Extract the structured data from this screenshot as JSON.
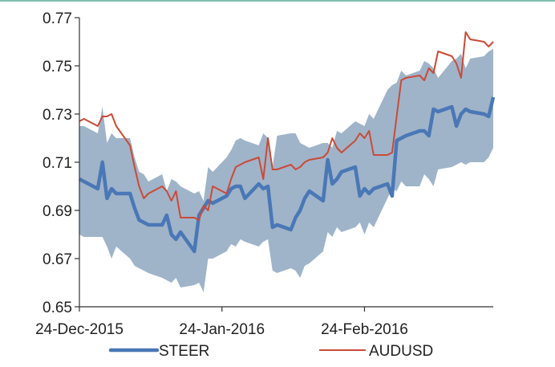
{
  "chart_data": {
    "type": "line",
    "title": "",
    "xlabel": "",
    "ylabel": "",
    "ylim": [
      0.65,
      0.77
    ],
    "yticks": [
      "0.77",
      "0.75",
      "0.73",
      "0.71",
      "0.69",
      "0.67",
      "0.65"
    ],
    "ytick_values": [
      0.77,
      0.75,
      0.73,
      0.71,
      0.69,
      0.67,
      0.65
    ],
    "xticks": [
      "24-Dec-2015",
      "24-Jan-2016",
      "24-Feb-2016"
    ],
    "xtick_dates": [
      "2015-12-24",
      "2016-01-24",
      "2016-02-24"
    ],
    "x_range": [
      "2015-12-24",
      "2016-03-23"
    ],
    "grid": false,
    "legend_position": "bottom",
    "band": {
      "name": "",
      "color": "#9fb4c9",
      "x": [
        "2015-12-24",
        "2015-12-25",
        "2015-12-28",
        "2015-12-29",
        "2015-12-30",
        "2015-12-31",
        "2016-01-01",
        "2016-01-04",
        "2016-01-05",
        "2016-01-06",
        "2016-01-07",
        "2016-01-08",
        "2016-01-11",
        "2016-01-12",
        "2016-01-13",
        "2016-01-14",
        "2016-01-15",
        "2016-01-18",
        "2016-01-19",
        "2016-01-20",
        "2016-01-21",
        "2016-01-22",
        "2016-01-25",
        "2016-01-26",
        "2016-01-27",
        "2016-01-28",
        "2016-01-29",
        "2016-02-01",
        "2016-02-02",
        "2016-02-03",
        "2016-02-04",
        "2016-02-05",
        "2016-02-08",
        "2016-02-09",
        "2016-02-10",
        "2016-02-11",
        "2016-02-12",
        "2016-02-15",
        "2016-02-16",
        "2016-02-17",
        "2016-02-18",
        "2016-02-19",
        "2016-02-22",
        "2016-02-23",
        "2016-02-24",
        "2016-02-25",
        "2016-02-26",
        "2016-02-29",
        "2016-03-01",
        "2016-03-02",
        "2016-03-03",
        "2016-03-04",
        "2016-03-07",
        "2016-03-08",
        "2016-03-09",
        "2016-03-10",
        "2016-03-11",
        "2016-03-14",
        "2016-03-15",
        "2016-03-16",
        "2016-03-17",
        "2016-03-18",
        "2016-03-21",
        "2016-03-22",
        "2016-03-23"
      ],
      "upper": [
        0.725,
        0.725,
        0.722,
        0.733,
        0.718,
        0.722,
        0.72,
        0.72,
        0.712,
        0.706,
        0.705,
        0.702,
        0.705,
        0.698,
        0.703,
        0.702,
        0.7,
        0.697,
        0.698,
        0.694,
        0.708,
        0.706,
        0.712,
        0.715,
        0.719,
        0.72,
        0.719,
        0.717,
        0.722,
        0.72,
        0.708,
        0.721,
        0.722,
        0.722,
        0.718,
        0.717,
        0.716,
        0.718,
        0.718,
        0.716,
        0.723,
        0.722,
        0.727,
        0.726,
        0.725,
        0.73,
        0.728,
        0.74,
        0.742,
        0.743,
        0.748,
        0.746,
        0.748,
        0.752,
        0.751,
        0.749,
        0.745,
        0.752,
        0.753,
        0.755,
        0.749,
        0.753,
        0.754,
        0.756,
        0.757
      ],
      "lower": [
        0.68,
        0.679,
        0.679,
        0.679,
        0.675,
        0.67,
        0.675,
        0.67,
        0.667,
        0.666,
        0.665,
        0.664,
        0.662,
        0.661,
        0.66,
        0.662,
        0.658,
        0.659,
        0.66,
        0.656,
        0.67,
        0.67,
        0.673,
        0.676,
        0.675,
        0.678,
        0.677,
        0.675,
        0.677,
        0.678,
        0.665,
        0.664,
        0.666,
        0.665,
        0.662,
        0.667,
        0.668,
        0.673,
        0.681,
        0.679,
        0.683,
        0.681,
        0.683,
        0.685,
        0.68,
        0.685,
        0.683,
        0.695,
        0.699,
        0.698,
        0.702,
        0.7,
        0.7,
        0.705,
        0.703,
        0.7,
        0.707,
        0.708,
        0.709,
        0.71,
        0.709,
        0.71,
        0.71,
        0.712,
        0.716
      ]
    },
    "series": [
      {
        "name": "STEER",
        "color": "#4a77b6",
        "x": [
          "2015-12-24",
          "2015-12-25",
          "2015-12-28",
          "2015-12-29",
          "2015-12-30",
          "2015-12-31",
          "2016-01-01",
          "2016-01-04",
          "2016-01-05",
          "2016-01-06",
          "2016-01-07",
          "2016-01-08",
          "2016-01-11",
          "2016-01-12",
          "2016-01-13",
          "2016-01-14",
          "2016-01-15",
          "2016-01-18",
          "2016-01-19",
          "2016-01-20",
          "2016-01-21",
          "2016-01-22",
          "2016-01-25",
          "2016-01-26",
          "2016-01-27",
          "2016-01-28",
          "2016-01-29",
          "2016-02-01",
          "2016-02-02",
          "2016-02-03",
          "2016-02-04",
          "2016-02-05",
          "2016-02-08",
          "2016-02-09",
          "2016-02-10",
          "2016-02-11",
          "2016-02-12",
          "2016-02-15",
          "2016-02-16",
          "2016-02-17",
          "2016-02-18",
          "2016-02-19",
          "2016-02-22",
          "2016-02-23",
          "2016-02-24",
          "2016-02-25",
          "2016-02-26",
          "2016-02-29",
          "2016-03-01",
          "2016-03-02",
          "2016-03-03",
          "2016-03-04",
          "2016-03-07",
          "2016-03-08",
          "2016-03-09",
          "2016-03-10",
          "2016-03-11",
          "2016-03-14",
          "2016-03-15",
          "2016-03-16",
          "2016-03-17",
          "2016-03-18",
          "2016-03-21",
          "2016-03-22",
          "2016-03-23"
        ],
        "values": [
          0.703,
          0.702,
          0.699,
          0.71,
          0.695,
          0.699,
          0.697,
          0.697,
          0.691,
          0.686,
          0.685,
          0.684,
          0.684,
          0.688,
          0.68,
          0.678,
          0.681,
          0.673,
          0.688,
          0.691,
          0.694,
          0.693,
          0.696,
          0.699,
          0.7,
          0.7,
          0.695,
          0.701,
          0.699,
          0.7,
          0.683,
          0.684,
          0.682,
          0.687,
          0.69,
          0.695,
          0.698,
          0.694,
          0.711,
          0.701,
          0.703,
          0.706,
          0.708,
          0.696,
          0.699,
          0.697,
          0.699,
          0.701,
          0.696,
          0.719,
          0.72,
          0.721,
          0.723,
          0.723,
          0.721,
          0.732,
          0.731,
          0.733,
          0.725,
          0.73,
          0.732,
          0.731,
          0.73,
          0.729,
          0.737
        ]
      },
      {
        "name": "AUDUSD",
        "color": "#cb4a37",
        "x": [
          "2015-12-24",
          "2015-12-25",
          "2015-12-28",
          "2015-12-29",
          "2015-12-30",
          "2015-12-31",
          "2016-01-01",
          "2016-01-04",
          "2016-01-05",
          "2016-01-06",
          "2016-01-07",
          "2016-01-08",
          "2016-01-11",
          "2016-01-12",
          "2016-01-13",
          "2016-01-14",
          "2016-01-15",
          "2016-01-18",
          "2016-01-19",
          "2016-01-20",
          "2016-01-21",
          "2016-01-22",
          "2016-01-25",
          "2016-01-26",
          "2016-01-27",
          "2016-01-28",
          "2016-01-29",
          "2016-02-01",
          "2016-02-02",
          "2016-02-03",
          "2016-02-04",
          "2016-02-05",
          "2016-02-08",
          "2016-02-09",
          "2016-02-10",
          "2016-02-11",
          "2016-02-12",
          "2016-02-15",
          "2016-02-16",
          "2016-02-17",
          "2016-02-18",
          "2016-02-19",
          "2016-02-22",
          "2016-02-23",
          "2016-02-24",
          "2016-02-25",
          "2016-02-26",
          "2016-02-29",
          "2016-03-01",
          "2016-03-02",
          "2016-03-03",
          "2016-03-04",
          "2016-03-07",
          "2016-03-08",
          "2016-03-09",
          "2016-03-10",
          "2016-03-11",
          "2016-03-14",
          "2016-03-15",
          "2016-03-16",
          "2016-03-17",
          "2016-03-18",
          "2016-03-21",
          "2016-03-22",
          "2016-03-23"
        ],
        "values": [
          0.727,
          0.728,
          0.725,
          0.729,
          0.729,
          0.73,
          0.725,
          0.717,
          0.708,
          0.7,
          0.695,
          0.697,
          0.7,
          0.698,
          0.694,
          0.698,
          0.687,
          0.687,
          0.686,
          0.692,
          0.69,
          0.7,
          0.697,
          0.703,
          0.708,
          0.709,
          0.71,
          0.712,
          0.703,
          0.72,
          0.707,
          0.707,
          0.709,
          0.707,
          0.708,
          0.71,
          0.711,
          0.712,
          0.714,
          0.72,
          0.716,
          0.714,
          0.719,
          0.722,
          0.72,
          0.723,
          0.713,
          0.713,
          0.714,
          0.729,
          0.744,
          0.745,
          0.746,
          0.744,
          0.749,
          0.747,
          0.756,
          0.754,
          0.751,
          0.745,
          0.764,
          0.761,
          0.76,
          0.758,
          0.76
        ]
      }
    ]
  }
}
